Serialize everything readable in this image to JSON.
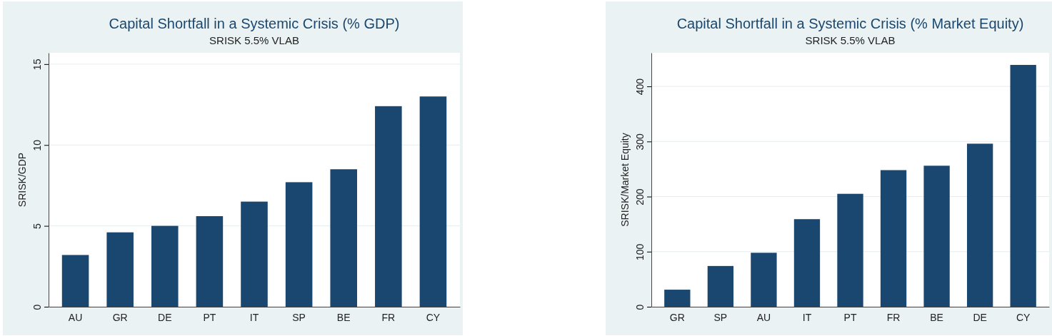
{
  "chart_data": [
    {
      "type": "bar",
      "title": "Capital Shortfall in a Systemic Crisis (% GDP)",
      "subtitle": "SRISK 5.5% VLAB",
      "ylabel": "SRISK/GDP",
      "categories": [
        "AU",
        "GR",
        "DE",
        "PT",
        "IT",
        "SP",
        "BE",
        "FR",
        "CY"
      ],
      "values": [
        3.2,
        4.6,
        5.0,
        5.6,
        6.5,
        7.7,
        8.5,
        12.4,
        13.0
      ],
      "color": "#1a476f",
      "ylim": [
        0,
        15.7
      ],
      "yticks": [
        0,
        5,
        10,
        15
      ],
      "grid": "y"
    },
    {
      "type": "bar",
      "title": "Capital Shortfall in a Systemic Crisis (% Market Equity)",
      "subtitle": "SRISK 5.5% VLAB",
      "ylabel": "SRISK/Market Equity",
      "categories": [
        "GR",
        "SP",
        "AU",
        "IT",
        "PT",
        "FR",
        "BE",
        "DE",
        "CY"
      ],
      "values": [
        31,
        74,
        98,
        159,
        205,
        248,
        256,
        296,
        439
      ],
      "color": "#1a476f",
      "ylim": [
        0,
        461
      ],
      "yticks": [
        0,
        100,
        200,
        300,
        400
      ],
      "grid": "y"
    }
  ]
}
